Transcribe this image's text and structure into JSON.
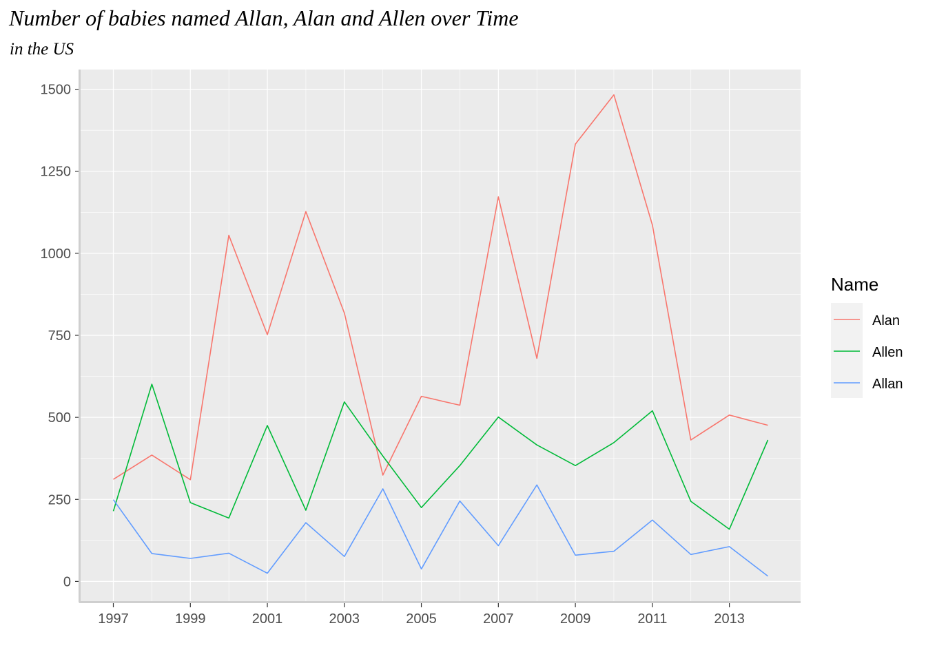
{
  "chart_data": {
    "type": "line",
    "title": "Number of babies named Allan, Alan and Allen over Time",
    "subtitle": "in the US",
    "xlabel": "",
    "ylabel": "",
    "x": [
      1997,
      1998,
      1999,
      2000,
      2001,
      2002,
      2003,
      2004,
      2005,
      2006,
      2007,
      2008,
      2009,
      2010,
      2011,
      2012,
      2013,
      2014
    ],
    "x_ticks": [
      1997,
      1999,
      2001,
      2003,
      2005,
      2007,
      2009,
      2011,
      2013
    ],
    "x_tick_labels": [
      "1997",
      "1999",
      "2001",
      "2003",
      "2005",
      "2007",
      "2009",
      "2011",
      "2013"
    ],
    "y_ticks": [
      0,
      250,
      500,
      750,
      1000,
      1250,
      1500
    ],
    "y_tick_labels": [
      "0",
      "250",
      "500",
      "750",
      "1000",
      "1250",
      "1500"
    ],
    "xlim": [
      1996.15,
      2014.85
    ],
    "ylim": [
      -60,
      1560
    ],
    "grid": true,
    "legend": {
      "title": "Name",
      "position": "right"
    },
    "series": [
      {
        "name": "Alan",
        "color": "#F8766D",
        "values": [
          311,
          385,
          310,
          1055,
          752,
          1127,
          818,
          324,
          564,
          537,
          1172,
          680,
          1333,
          1483,
          1086,
          431,
          507,
          476
        ]
      },
      {
        "name": "Allen",
        "color": "#00BA38",
        "values": [
          214,
          601,
          240,
          193,
          475,
          217,
          547,
          382,
          225,
          353,
          501,
          416,
          353,
          423,
          520,
          244,
          159,
          431
        ]
      },
      {
        "name": "Allan",
        "color": "#619CFF",
        "values": [
          249,
          85,
          70,
          86,
          25,
          179,
          76,
          282,
          38,
          245,
          109,
          294,
          80,
          92,
          187,
          82,
          106,
          16
        ]
      }
    ]
  }
}
